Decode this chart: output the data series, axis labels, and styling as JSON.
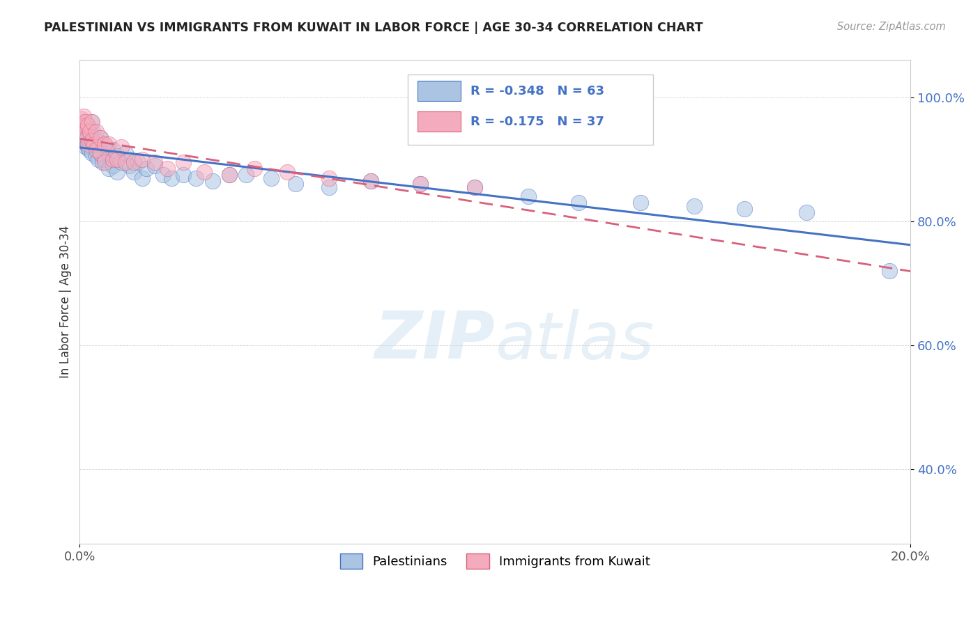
{
  "title": "PALESTINIAN VS IMMIGRANTS FROM KUWAIT IN LABOR FORCE | AGE 30-34 CORRELATION CHART",
  "source": "Source: ZipAtlas.com",
  "ylabel": "In Labor Force | Age 30-34",
  "xlim": [
    0.0,
    0.2
  ],
  "ylim": [
    0.28,
    1.06
  ],
  "yticks": [
    0.4,
    0.6,
    0.8,
    1.0
  ],
  "ytick_labels": [
    "40.0%",
    "60.0%",
    "80.0%",
    "100.0%"
  ],
  "blue_R": -0.348,
  "blue_N": 63,
  "pink_R": -0.175,
  "pink_N": 37,
  "blue_color": "#aac4e2",
  "pink_color": "#f5abbe",
  "blue_line_color": "#4472c4",
  "pink_line_color": "#d9607a",
  "legend_label_blue": "Palestinians",
  "legend_label_pink": "Immigrants from Kuwait",
  "watermark_zip": "ZIP",
  "watermark_atlas": "atlas",
  "blue_x": [
    0.0005,
    0.0008,
    0.001,
    0.001,
    0.0012,
    0.0013,
    0.0015,
    0.0015,
    0.0017,
    0.0018,
    0.002,
    0.002,
    0.0022,
    0.0023,
    0.0025,
    0.0027,
    0.003,
    0.003,
    0.0032,
    0.0035,
    0.004,
    0.004,
    0.0042,
    0.0045,
    0.005,
    0.005,
    0.0055,
    0.006,
    0.006,
    0.007,
    0.007,
    0.008,
    0.008,
    0.009,
    0.009,
    0.01,
    0.011,
    0.012,
    0.013,
    0.014,
    0.015,
    0.016,
    0.018,
    0.02,
    0.022,
    0.025,
    0.028,
    0.032,
    0.036,
    0.04,
    0.046,
    0.052,
    0.06,
    0.07,
    0.082,
    0.095,
    0.108,
    0.12,
    0.135,
    0.148,
    0.16,
    0.175,
    0.195
  ],
  "blue_y": [
    0.955,
    0.945,
    0.96,
    0.935,
    0.95,
    0.93,
    0.94,
    0.92,
    0.955,
    0.925,
    0.95,
    0.92,
    0.935,
    0.915,
    0.94,
    0.96,
    0.935,
    0.91,
    0.945,
    0.925,
    0.93,
    0.905,
    0.92,
    0.9,
    0.935,
    0.91,
    0.895,
    0.925,
    0.9,
    0.91,
    0.885,
    0.915,
    0.89,
    0.905,
    0.88,
    0.895,
    0.91,
    0.89,
    0.88,
    0.895,
    0.87,
    0.885,
    0.89,
    0.875,
    0.87,
    0.875,
    0.87,
    0.865,
    0.875,
    0.875,
    0.87,
    0.86,
    0.855,
    0.865,
    0.86,
    0.855,
    0.84,
    0.83,
    0.83,
    0.825,
    0.82,
    0.815,
    0.72
  ],
  "pink_x": [
    0.0005,
    0.0007,
    0.001,
    0.001,
    0.0012,
    0.0015,
    0.0017,
    0.002,
    0.002,
    0.0025,
    0.003,
    0.003,
    0.0035,
    0.004,
    0.004,
    0.005,
    0.005,
    0.006,
    0.006,
    0.007,
    0.008,
    0.009,
    0.01,
    0.011,
    0.013,
    0.015,
    0.018,
    0.021,
    0.025,
    0.03,
    0.036,
    0.042,
    0.05,
    0.06,
    0.07,
    0.082,
    0.095
  ],
  "pink_y": [
    0.965,
    0.955,
    0.97,
    0.945,
    0.955,
    0.96,
    0.935,
    0.955,
    0.925,
    0.945,
    0.93,
    0.96,
    0.925,
    0.945,
    0.915,
    0.935,
    0.91,
    0.925,
    0.895,
    0.925,
    0.9,
    0.9,
    0.92,
    0.895,
    0.895,
    0.9,
    0.895,
    0.885,
    0.895,
    0.88,
    0.875,
    0.885,
    0.88,
    0.87,
    0.865,
    0.86,
    0.855
  ]
}
